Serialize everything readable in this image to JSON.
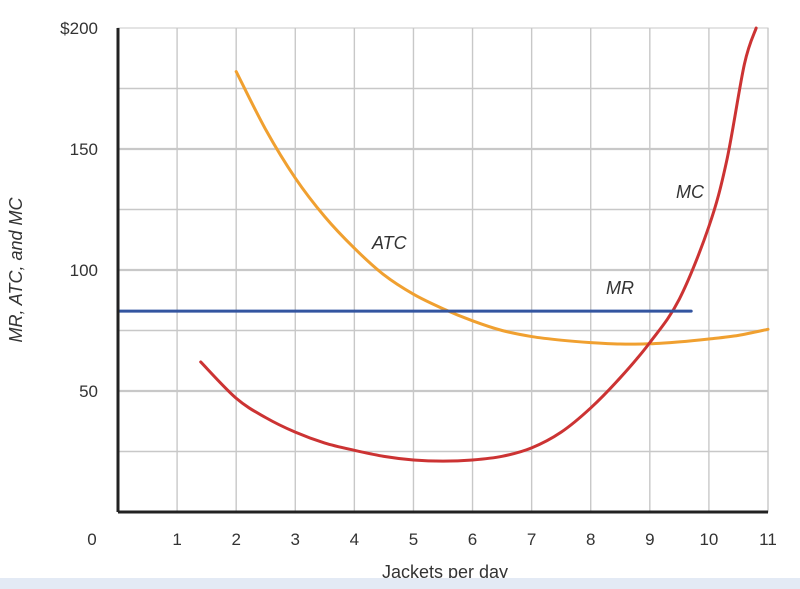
{
  "chart_data": {
    "type": "line",
    "title": "",
    "xlabel": "Jackets per day",
    "ylabel": "MR, ATC, and MC",
    "xlim": [
      0,
      11
    ],
    "ylim": [
      0,
      200
    ],
    "grid": true,
    "x_ticks": [
      "0",
      "1",
      "2",
      "3",
      "4",
      "5",
      "6",
      "7",
      "8",
      "9",
      "10",
      "11"
    ],
    "y_ticks": [
      {
        "value": 50,
        "label": "50"
      },
      {
        "value": 100,
        "label": "100"
      },
      {
        "value": 150,
        "label": "150"
      },
      {
        "value": 200,
        "label": "$200"
      }
    ],
    "series": [
      {
        "name": "ATC",
        "color": "#f0a030",
        "x": [
          2,
          2.5,
          3,
          3.5,
          4,
          4.5,
          5,
          5.5,
          6,
          6.5,
          7,
          7.5,
          8,
          8.5,
          9,
          9.5,
          10,
          10.5,
          11
        ],
        "y": [
          182,
          158,
          138,
          122,
          109,
          98,
          90,
          84,
          79,
          75,
          72.5,
          71,
          70,
          69.4,
          69.5,
          70.3,
          71.5,
          73,
          75.5
        ]
      },
      {
        "name": "MC",
        "color": "#cc3333",
        "x": [
          1.4,
          2,
          2.5,
          3,
          3.5,
          4,
          4.5,
          5,
          5.5,
          6,
          6.5,
          7,
          7.5,
          8,
          8.5,
          9,
          9.5,
          10,
          10.3,
          10.6,
          10.8
        ],
        "y": [
          62,
          47,
          39,
          33,
          28.5,
          25.5,
          23,
          21.5,
          21,
          21.5,
          23,
          26.5,
          33,
          43,
          55.5,
          70,
          88,
          118,
          145,
          185,
          200
        ]
      },
      {
        "name": "MR",
        "color": "#3355a0",
        "x": [
          0,
          9.7
        ],
        "y": [
          83,
          83
        ]
      }
    ],
    "annotations": [
      {
        "text": "ATC",
        "series": "ATC"
      },
      {
        "text": "MC",
        "series": "MC"
      },
      {
        "text": "MR",
        "series": "MR"
      }
    ]
  }
}
